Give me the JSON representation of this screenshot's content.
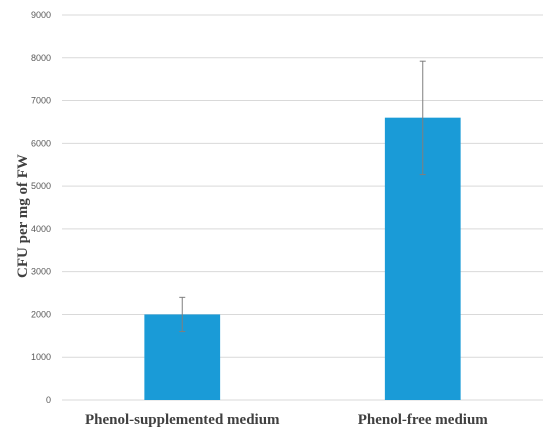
{
  "chart_data": {
    "type": "bar",
    "title": "",
    "xlabel": "",
    "ylabel": "CFU per mg of FW",
    "categories": [
      "Phenol-supplemented medium",
      "Phenol-free medium"
    ],
    "values": [
      2000,
      6600
    ],
    "error_bars": [
      {
        "low": 1600,
        "high": 2400
      },
      {
        "low": 5270,
        "high": 7920
      }
    ],
    "ylim": [
      0,
      9000
    ],
    "yticks": [
      "0",
      "1000",
      "2000",
      "3000",
      "4000",
      "5000",
      "6000",
      "7000",
      "8000",
      "9000"
    ],
    "grid": "horizontal",
    "legend": "none",
    "colors": {
      "bar": "#1a9bd7",
      "grid": "#d9d9d9",
      "error_bar": "#7f7f7f"
    }
  }
}
